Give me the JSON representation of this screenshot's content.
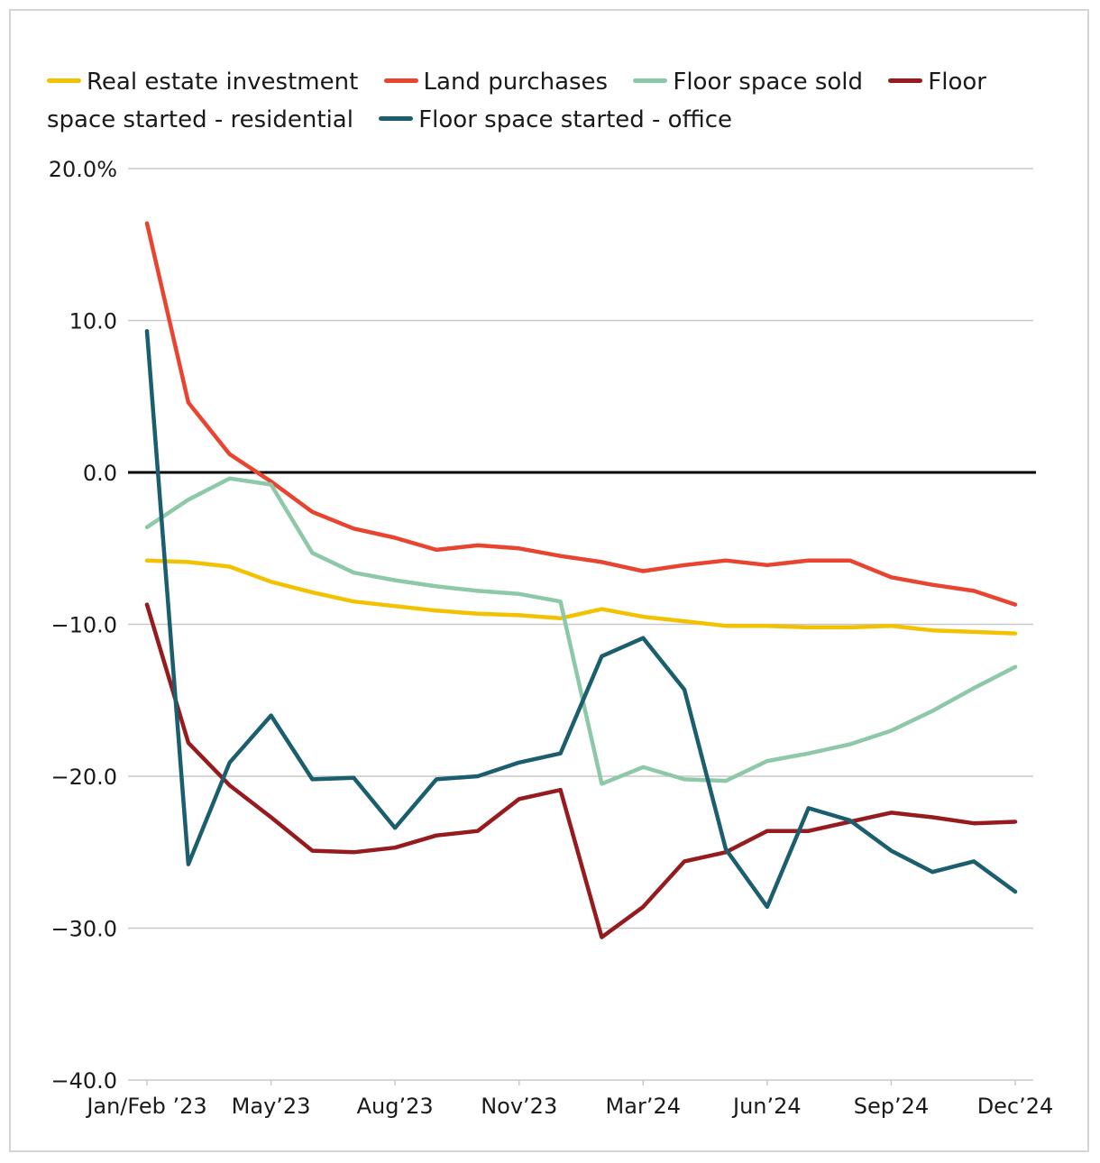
{
  "chart_data": {
    "type": "line",
    "title": "",
    "xlabel": "",
    "ylabel": "",
    "ylim": [
      -40,
      20
    ],
    "yticks": [
      20,
      10,
      0,
      -10,
      -20,
      -30,
      -40
    ],
    "ytick_labels": [
      "20.0%",
      "10.0",
      "0.0",
      "−10.0",
      "−20.0",
      "−30.0",
      "−40.0"
    ],
    "x_tick_labels": [
      {
        "index": 0,
        "label": "Jan/Feb ’23"
      },
      {
        "index": 3,
        "label": "May’23"
      },
      {
        "index": 6,
        "label": "Aug’23"
      },
      {
        "index": 9,
        "label": "Nov’23"
      },
      {
        "index": 12,
        "label": "Mar’24"
      },
      {
        "index": 15,
        "label": "Jun’24"
      },
      {
        "index": 18,
        "label": "Sep’24"
      },
      {
        "index": 21,
        "label": "Dec’24"
      }
    ],
    "n_points": 22,
    "grid": true,
    "legend_position": "top",
    "series": [
      {
        "name": "Real estate investment",
        "color": "#F2C200",
        "values": [
          -5.8,
          -5.9,
          -6.2,
          -7.2,
          -7.9,
          -8.5,
          -8.8,
          -9.1,
          -9.3,
          -9.4,
          -9.6,
          -9.0,
          -9.5,
          -9.8,
          -10.1,
          -10.1,
          -10.2,
          -10.2,
          -10.1,
          -10.4,
          -10.5,
          -10.6
        ]
      },
      {
        "name": "Land purchases",
        "color": "#E84430",
        "values": [
          16.4,
          4.6,
          1.2,
          -0.6,
          -2.6,
          -3.7,
          -4.3,
          -5.1,
          -4.8,
          -5.0,
          -5.5,
          -5.9,
          -6.5,
          -6.1,
          -5.8,
          -6.1,
          -5.8,
          -5.8,
          -6.9,
          -7.4,
          -7.8,
          -8.7
        ]
      },
      {
        "name": "Floor space sold",
        "color": "#8DC8A8",
        "values": [
          -3.6,
          -1.8,
          -0.4,
          -0.8,
          -5.3,
          -6.6,
          -7.1,
          -7.5,
          -7.8,
          -8.0,
          -8.5,
          -20.5,
          -19.4,
          -20.2,
          -20.3,
          -19.0,
          -18.5,
          -17.9,
          -17.0,
          -15.7,
          -14.2,
          -12.8
        ]
      },
      {
        "name": "Floor space started - residential",
        "color": "#961B1E",
        "values": [
          -8.7,
          -17.8,
          -20.6,
          -22.7,
          -24.9,
          -25.0,
          -24.7,
          -23.9,
          -23.6,
          -21.5,
          -20.9,
          -30.6,
          -28.6,
          -25.6,
          -25.0,
          -23.6,
          -23.6,
          -23.0,
          -22.4,
          -22.7,
          -23.1,
          -23.0
        ]
      },
      {
        "name": "Floor space started - office",
        "color": "#1B5E6E",
        "values": [
          9.3,
          -25.8,
          -19.1,
          -16.0,
          -20.2,
          -20.1,
          -23.4,
          -20.2,
          -20.0,
          -19.1,
          -18.5,
          -12.1,
          -10.9,
          -14.3,
          -24.8,
          -28.6,
          -22.1,
          -22.9,
          -24.9,
          -26.3,
          -25.6,
          -27.6
        ]
      }
    ]
  }
}
